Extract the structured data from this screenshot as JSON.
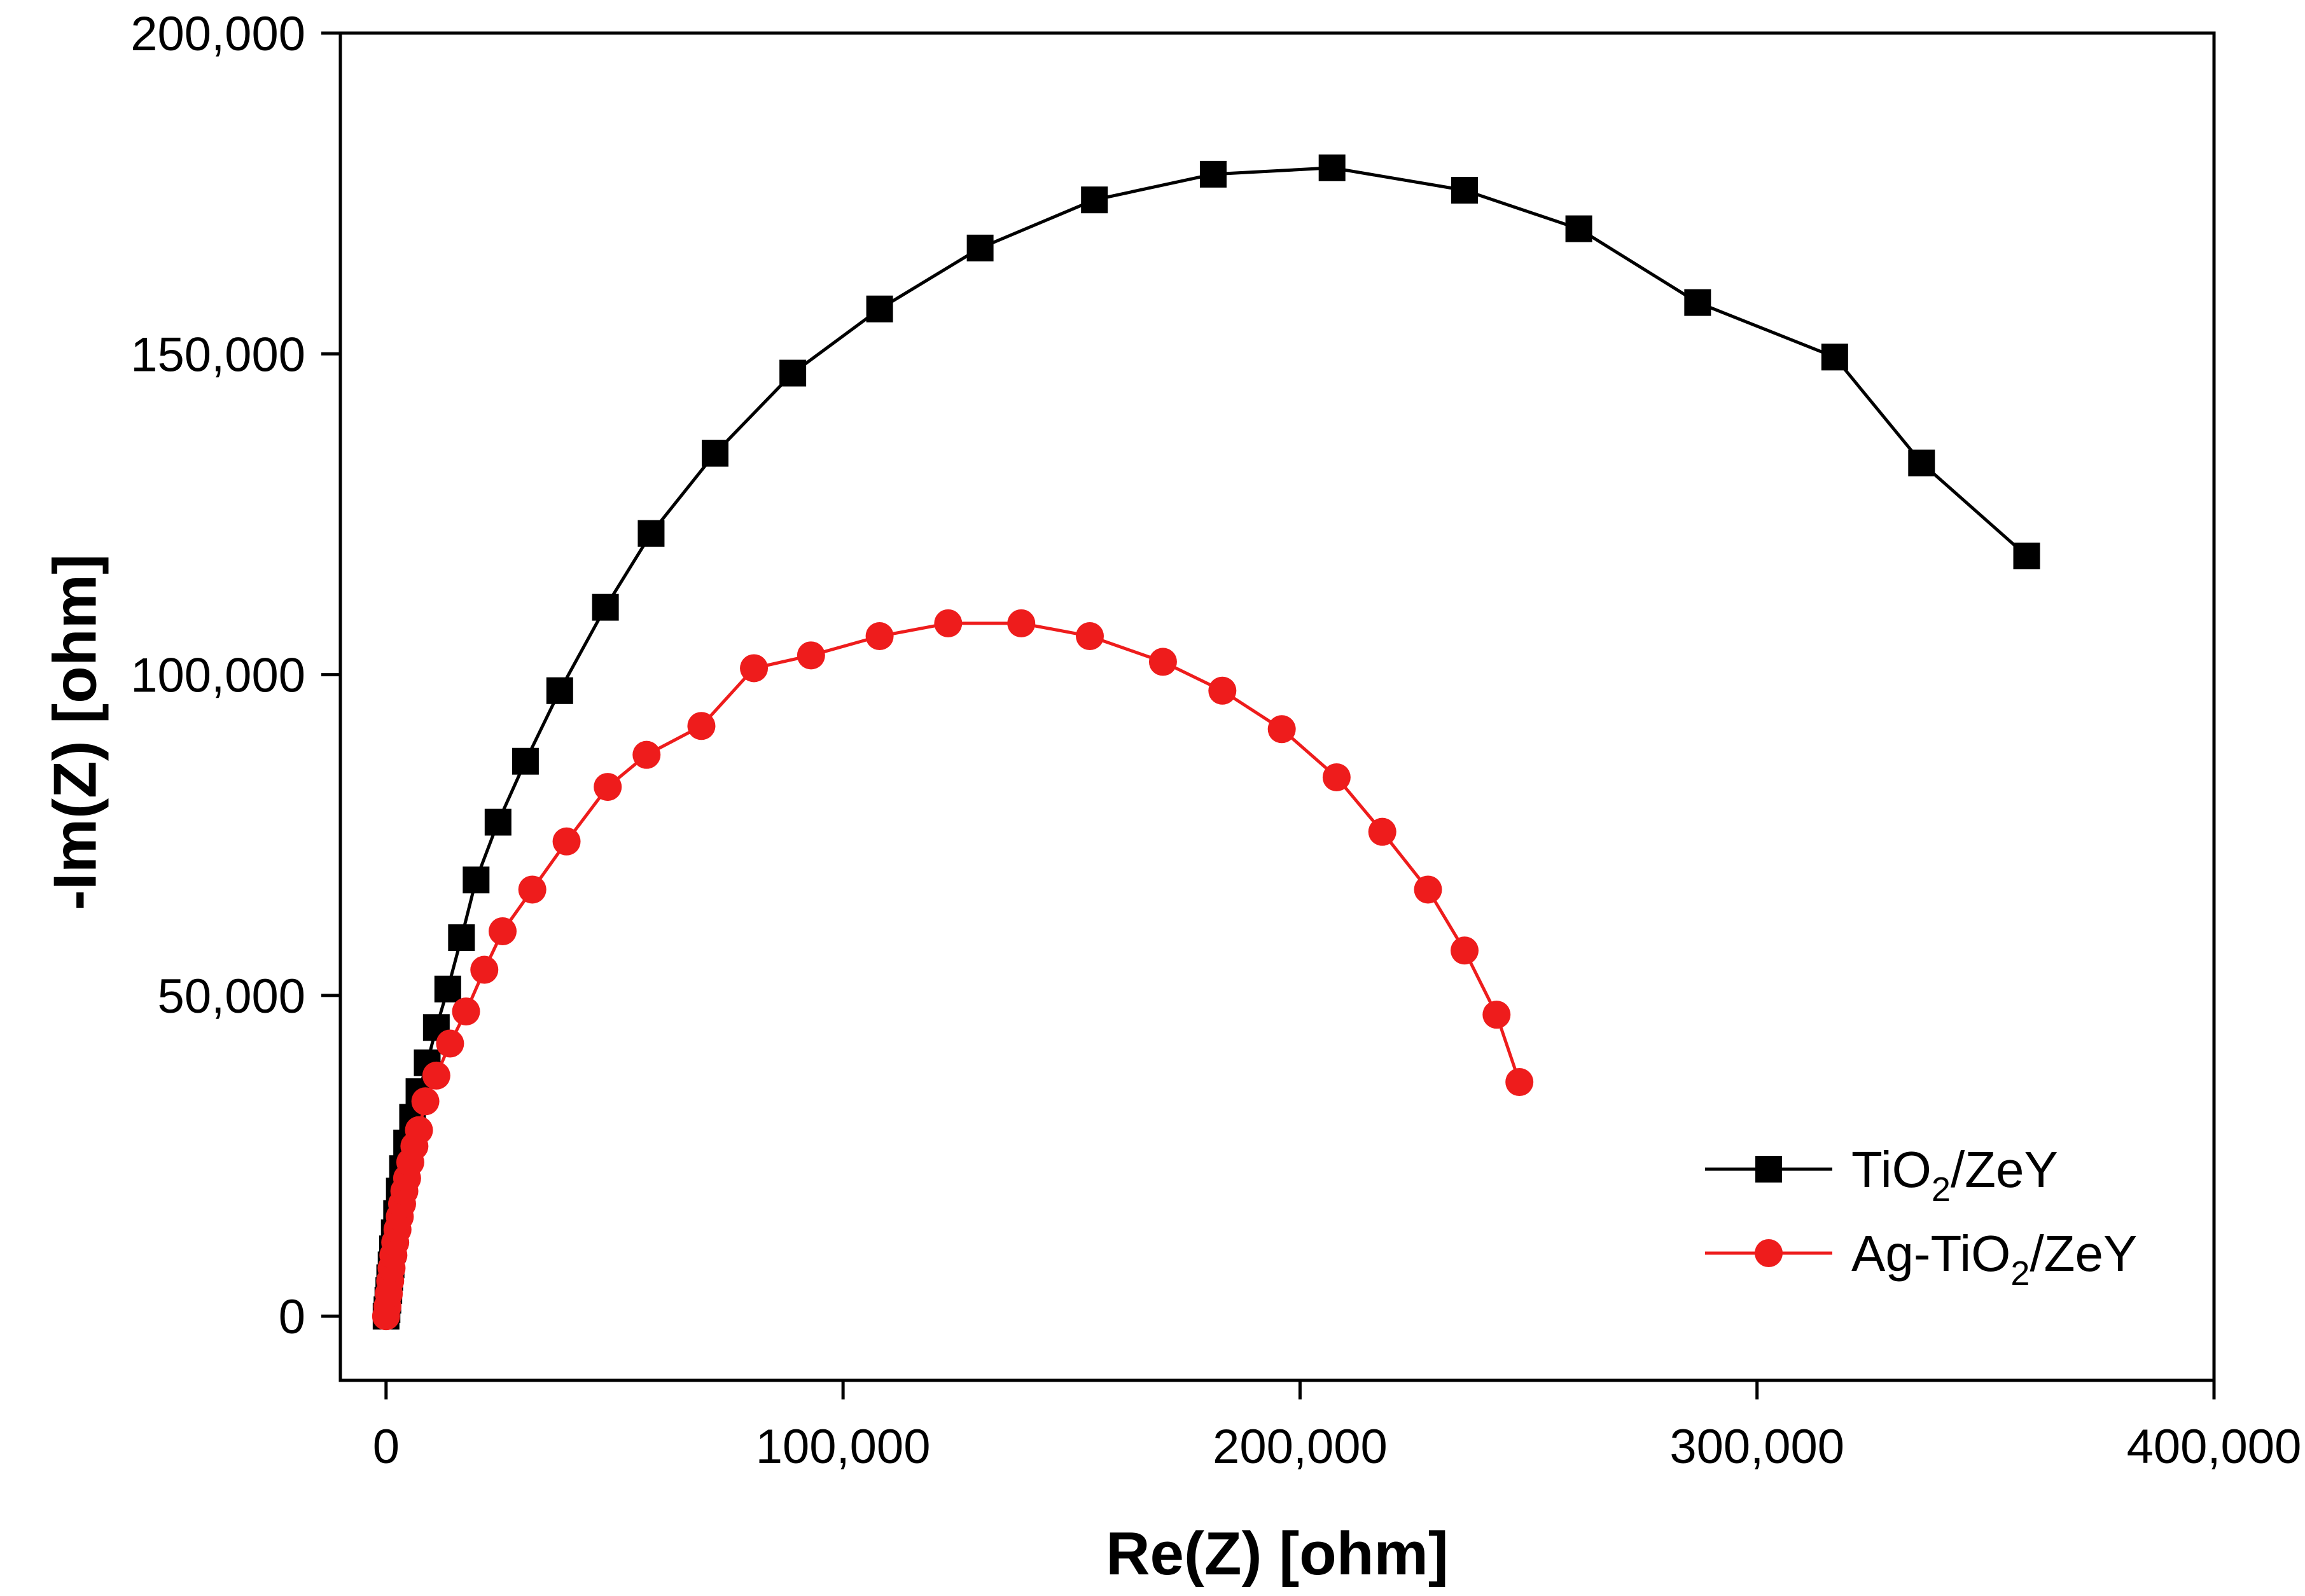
{
  "chart_data": {
    "type": "scatter",
    "title": "",
    "xlabel": "Re(Z) [ohm]",
    "ylabel": "-Im(Z) [ohm]",
    "xlim": [
      -10000,
      400000
    ],
    "ylim": [
      -10000,
      200000
    ],
    "x_ticks": [
      0,
      100000,
      200000,
      300000,
      400000
    ],
    "x_tick_labels": [
      "0",
      "100,000",
      "200,000",
      "300,000",
      "400,000"
    ],
    "y_ticks": [
      0,
      50000,
      100000,
      150000,
      200000
    ],
    "y_tick_labels": [
      "0",
      "50,000",
      "100,000",
      "150,000",
      "200,000"
    ],
    "grid": false,
    "legend_position": "bottom-right",
    "series": [
      {
        "name": "TiO2/ZeY",
        "label_main": "TiO",
        "label_sub": "2",
        "label_rest": "/ZeY",
        "color": "#000000",
        "marker": "square",
        "points": [
          [
            0,
            0
          ],
          [
            200,
            1000
          ],
          [
            400,
            2500
          ],
          [
            600,
            4000
          ],
          [
            800,
            6000
          ],
          [
            1100,
            8000
          ],
          [
            1400,
            10500
          ],
          [
            1800,
            13000
          ],
          [
            2300,
            16000
          ],
          [
            2900,
            19500
          ],
          [
            3600,
            23000
          ],
          [
            4500,
            27000
          ],
          [
            5800,
            31000
          ],
          [
            7200,
            35000
          ],
          [
            9000,
            39500
          ],
          [
            11000,
            45000
          ],
          [
            13500,
            51000
          ],
          [
            16500,
            59000
          ],
          [
            19700,
            68000
          ],
          [
            24500,
            77000
          ],
          [
            30500,
            86500
          ],
          [
            38000,
            97500
          ],
          [
            48000,
            110500
          ],
          [
            58000,
            122000
          ],
          [
            72000,
            134500
          ],
          [
            89000,
            147000
          ],
          [
            108000,
            157000
          ],
          [
            130000,
            166500
          ],
          [
            155000,
            174000
          ],
          [
            181000,
            178000
          ],
          [
            207000,
            179000
          ],
          [
            236000,
            175500
          ],
          [
            261000,
            169500
          ],
          [
            287000,
            158000
          ],
          [
            317000,
            149500
          ],
          [
            336000,
            133000
          ],
          [
            359000,
            118500
          ]
        ]
      },
      {
        "name": "Ag-TiO2/ZeY",
        "label_main": "Ag-TiO",
        "label_sub": "2",
        "label_rest": "/ZeY",
        "color": "#ee1c1c",
        "marker": "circle",
        "points": [
          [
            0,
            0
          ],
          [
            300,
            1500
          ],
          [
            600,
            3500
          ],
          [
            900,
            5500
          ],
          [
            1200,
            7500
          ],
          [
            1600,
            9500
          ],
          [
            2000,
            11500
          ],
          [
            2500,
            13500
          ],
          [
            3000,
            15500
          ],
          [
            3500,
            17500
          ],
          [
            4000,
            19500
          ],
          [
            4600,
            21500
          ],
          [
            5300,
            24000
          ],
          [
            6200,
            26500
          ],
          [
            7200,
            29000
          ],
          [
            8600,
            33500
          ],
          [
            11000,
            37500
          ],
          [
            14000,
            42500
          ],
          [
            17500,
            47500
          ],
          [
            21500,
            54000
          ],
          [
            25500,
            60000
          ],
          [
            32000,
            66500
          ],
          [
            39500,
            74000
          ],
          [
            48500,
            82500
          ],
          [
            57000,
            87500
          ],
          [
            69000,
            92000
          ],
          [
            80500,
            101000
          ],
          [
            93000,
            103000
          ],
          [
            108000,
            106000
          ],
          [
            123000,
            108000
          ],
          [
            139000,
            108000
          ],
          [
            154000,
            106000
          ],
          [
            170000,
            102000
          ],
          [
            183000,
            97500
          ],
          [
            196000,
            91500
          ],
          [
            208000,
            84000
          ],
          [
            218000,
            75500
          ],
          [
            228000,
            66500
          ],
          [
            236000,
            57000
          ],
          [
            243000,
            47000
          ],
          [
            248000,
            36500
          ]
        ]
      }
    ]
  }
}
